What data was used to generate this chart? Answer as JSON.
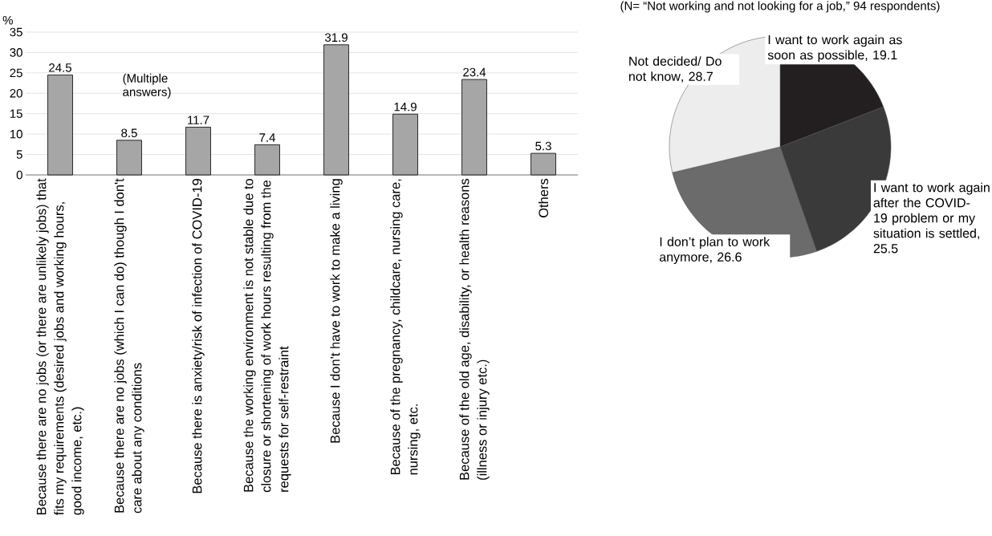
{
  "chart_data": [
    {
      "type": "bar",
      "ylabel": "%",
      "categories": [
        "Because there are no jobs (or there are unlikely jobs) that fits my requirements (desired jobs and working hours, good income, etc.)",
        "Because there are no jobs (which I can do) though I don't care about any conditions",
        "Because there is anxiety/risk of infection of COVID-19",
        "Because the working environment is not stable due to closure or shortening of work hours resulting from the requests for self-restraint",
        "Because I don't have to work to make a living",
        "Because of the pregnancy, childcare, nursing care, nursing, etc.",
        "Because of the old age, disability, or health reasons (illness or injury etc.)",
        "Others"
      ],
      "values": [
        24.5,
        8.5,
        11.7,
        7.4,
        31.9,
        14.9,
        23.4,
        5.3
      ],
      "color": "#a6a6a6",
      "ylim": [
        0,
        35
      ],
      "yticks": [
        0,
        5,
        10,
        15,
        20,
        25,
        30,
        35
      ],
      "grid": "y",
      "data_labels": true,
      "annotations": [
        "(Multiple answers)"
      ]
    },
    {
      "type": "pie",
      "title": "(N= “Not working and not looking for a job,” 94 respondents)",
      "categories": [
        "I want to work again as soon as possible",
        "I want to work again after the COVID-19 problem or my situation is settled",
        "I don’t plan to work anymore",
        "Not decided/ Do not know"
      ],
      "values": [
        19.1,
        25.5,
        26.6,
        28.7
      ],
      "value_labels": [
        ", 19.1",
        ", 25.5",
        ", 26.6",
        ", 28.7"
      ],
      "colors": [
        "#231f20",
        "#3a3a3a",
        "#6b6b6b",
        "#ededed"
      ]
    }
  ]
}
